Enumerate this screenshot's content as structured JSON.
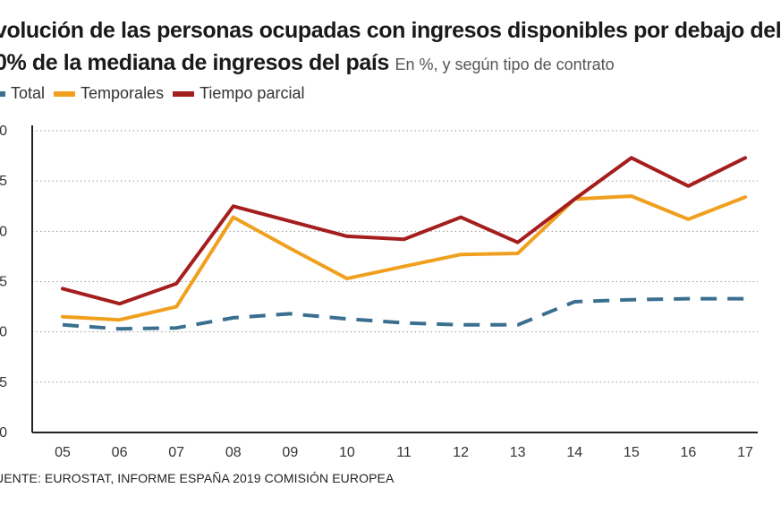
{
  "title_line1": "volución de las personas ocupadas con ingresos disponibles por debajo del",
  "title_line2": "0% de la mediana de ingresos del país",
  "subtitle": "En %, y según tipo de contrato",
  "source": "UENTE: EUROSTAT, INFORME ESPAÑA 2019 COMISIÓN EUROPEA",
  "colors": {
    "total": "#3a6f8f",
    "temporales": "#f0a01e",
    "tiempo_parcial": "#a51e1e",
    "grid": "#9a9a9a",
    "axis": "#222222"
  },
  "chart_data": {
    "type": "line",
    "title": "volución de las personas ocupadas con ingresos disponibles por debajo del 0% de la mediana de ingresos del país",
    "subtitle": "En %, y según tipo de contrato",
    "categories": [
      "05",
      "06",
      "07",
      "08",
      "09",
      "10",
      "11",
      "12",
      "13",
      "14",
      "15",
      "16",
      "17"
    ],
    "y_tick_labels": [
      "0",
      "5",
      "0",
      "5",
      "0",
      "5",
      "0"
    ],
    "grid": "horizontal dotted",
    "legend_position": "top-left",
    "series": [
      {
        "name": "Total",
        "key": "total",
        "style": "dashed",
        "values": [
          10.7,
          10.3,
          10.4,
          11.4,
          11.8,
          11.3,
          10.9,
          10.7,
          10.7,
          13.0,
          13.2,
          13.3,
          13.3
        ]
      },
      {
        "name": "Temporales",
        "key": "temporales",
        "style": "solid",
        "values": [
          11.5,
          11.2,
          12.5,
          21.4,
          18.3,
          15.3,
          16.5,
          17.7,
          17.8,
          23.2,
          23.5,
          21.2,
          23.4
        ]
      },
      {
        "name": "Tiempo parcial",
        "key": "tiempo_parcial",
        "style": "solid",
        "values": [
          14.3,
          12.8,
          14.8,
          22.5,
          21.0,
          19.5,
          19.2,
          21.4,
          18.9,
          23.2,
          27.3,
          24.5,
          27.3
        ]
      }
    ]
  }
}
